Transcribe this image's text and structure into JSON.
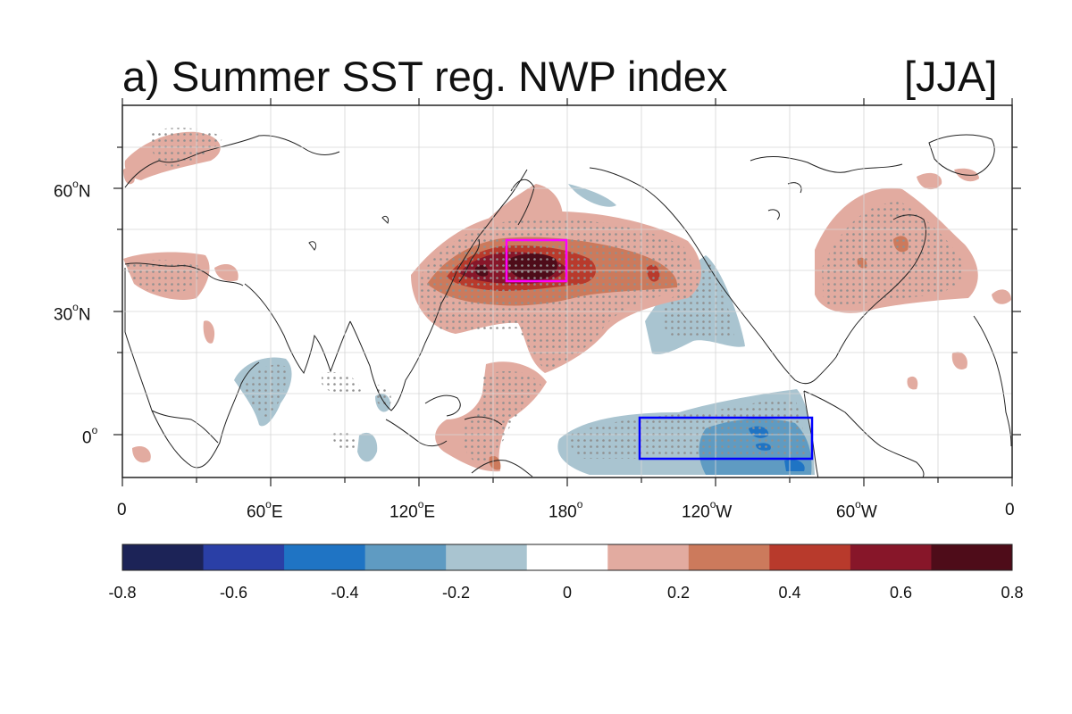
{
  "title": {
    "main": "a) Summer SST reg. NWP index",
    "season": "[JJA]"
  },
  "map": {
    "projection": "cylindrical-equidistant",
    "lon_range_deg_east": [
      0,
      360
    ],
    "lat_range_deg": [
      -10,
      80
    ],
    "grid": true,
    "coastlines": true,
    "stippling": "significant regions marked with grey dots",
    "x_tick_labels": [
      {
        "text": "0",
        "sup": ""
      },
      {
        "text": "60",
        "sup": "o",
        "hem": "E"
      },
      {
        "text": "120",
        "sup": "o",
        "hem": "E"
      },
      {
        "text": "180",
        "sup": "o",
        "hem": ""
      },
      {
        "text": "120",
        "sup": "o",
        "hem": "W"
      },
      {
        "text": "60",
        "sup": "o",
        "hem": "W"
      },
      {
        "text": "0",
        "sup": ""
      }
    ],
    "y_tick_labels": [
      {
        "text": "60",
        "sup": "o",
        "hem": "N"
      },
      {
        "text": "30",
        "sup": "o",
        "hem": "N"
      },
      {
        "text": "0",
        "sup": "o",
        "hem": ""
      }
    ],
    "index_boxes": [
      {
        "name": "NWP index region",
        "color": "#ff00ff",
        "lon": [
          155,
          180
        ],
        "lat": [
          37,
          48
        ]
      },
      {
        "name": "Eastern equatorial Pacific",
        "color": "#0000ff",
        "lon": [
          210,
          278
        ],
        "lat": [
          -5,
          5
        ]
      }
    ]
  },
  "colorbar": {
    "colors": [
      "#1c2357",
      "#2a3fa6",
      "#1f74c4",
      "#5f9bc2",
      "#a9c4d0",
      "#ffffff",
      "#e2aba0",
      "#cc7a5c",
      "#b83a2c",
      "#871629",
      "#4e0c19"
    ],
    "tick_labels": [
      "-0.8",
      "-0.6",
      "-0.4",
      "-0.2",
      "0",
      "0.2",
      "0.4",
      "0.6",
      "0.8"
    ]
  }
}
